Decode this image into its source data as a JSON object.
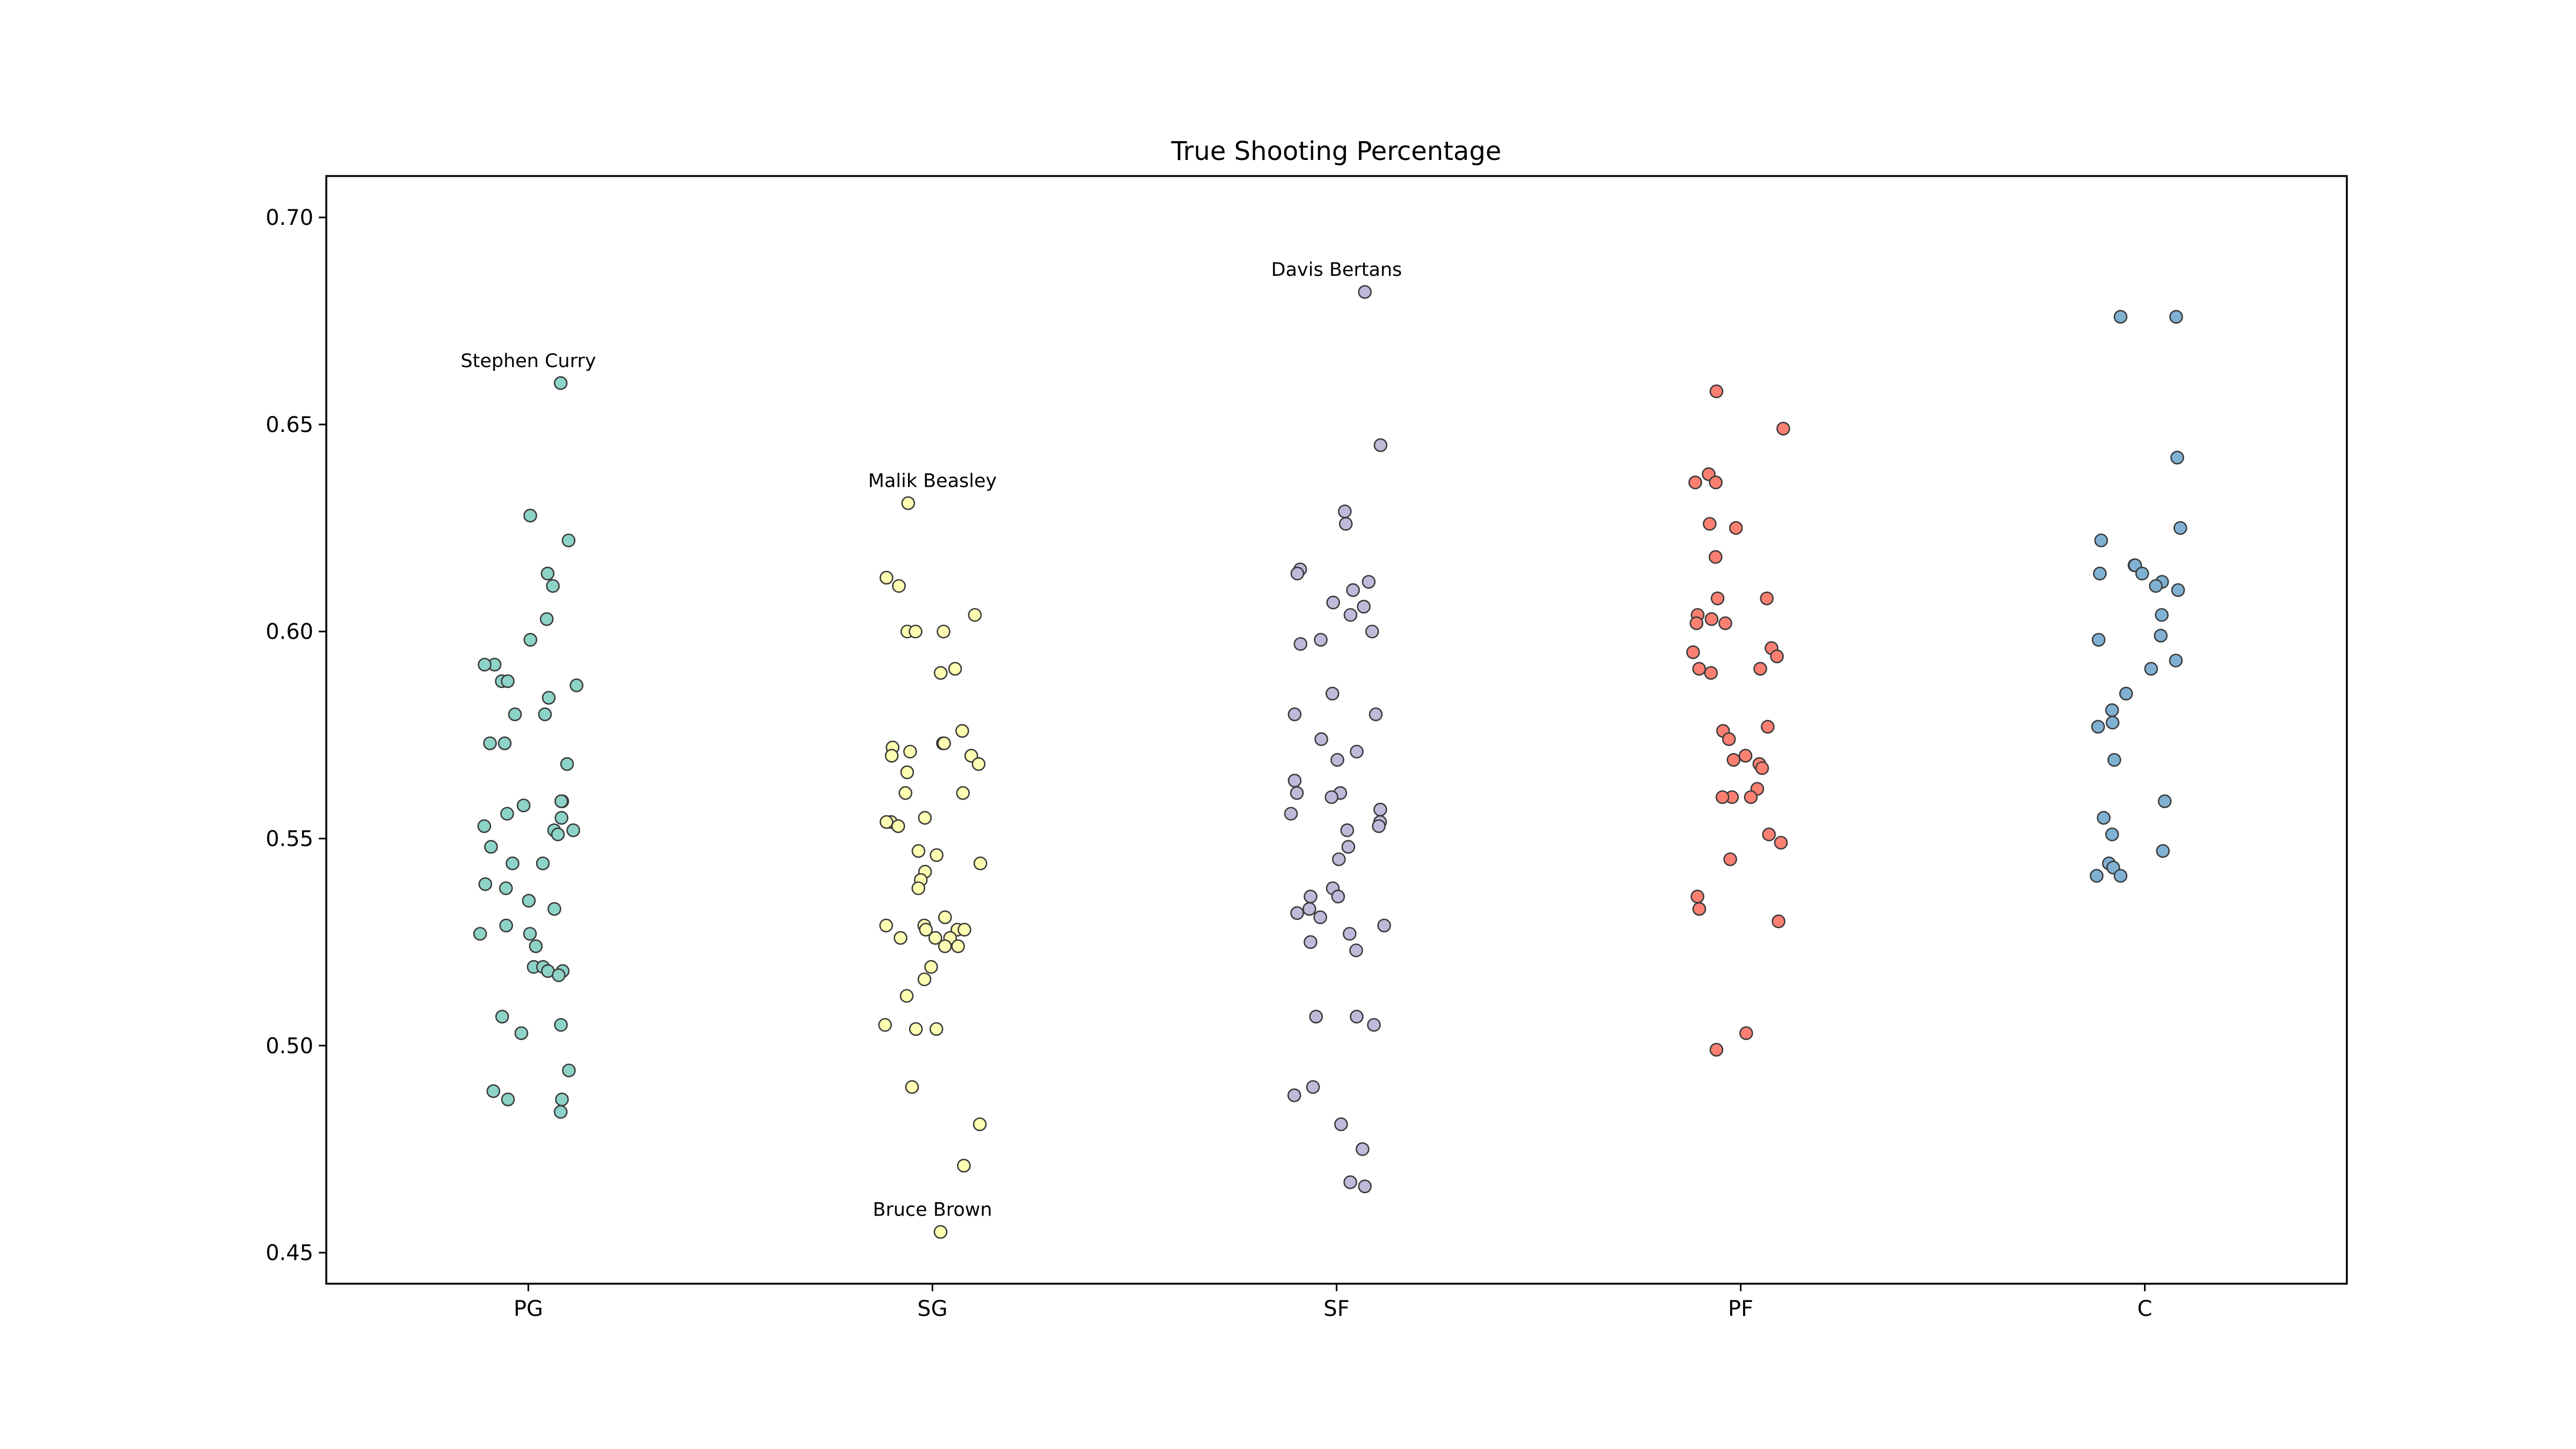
{
  "chart_data": {
    "type": "scatter",
    "subtype": "strip",
    "title": "True Shooting Percentage",
    "xlabel": "",
    "ylabel": "",
    "categories": [
      "PG",
      "SG",
      "SF",
      "PF",
      "C"
    ],
    "ylim": [
      0.4425,
      0.71
    ],
    "yticks": [
      0.45,
      0.5,
      0.55,
      0.6,
      0.65,
      0.7
    ],
    "ytick_labels": [
      "0.45",
      "0.50",
      "0.55",
      "0.60",
      "0.65",
      "0.70"
    ],
    "grid": false,
    "legend": "none",
    "series": [
      {
        "category": "PG",
        "color": "#8dd3c7",
        "values": [
          0.66,
          0.628,
          0.622,
          0.614,
          0.611,
          0.603,
          0.598,
          0.592,
          0.592,
          0.588,
          0.588,
          0.587,
          0.584,
          0.58,
          0.58,
          0.573,
          0.573,
          0.568,
          0.559,
          0.559,
          0.558,
          0.556,
          0.555,
          0.553,
          0.552,
          0.552,
          0.551,
          0.548,
          0.544,
          0.544,
          0.539,
          0.538,
          0.535,
          0.533,
          0.529,
          0.527,
          0.527,
          0.524,
          0.519,
          0.519,
          0.518,
          0.518,
          0.517,
          0.507,
          0.505,
          0.503,
          0.494,
          0.489,
          0.487,
          0.487,
          0.484
        ]
      },
      {
        "category": "SG",
        "color": "#ffffb3",
        "values": [
          0.631,
          0.613,
          0.611,
          0.604,
          0.6,
          0.6,
          0.6,
          0.591,
          0.59,
          0.576,
          0.573,
          0.573,
          0.572,
          0.571,
          0.57,
          0.57,
          0.568,
          0.566,
          0.561,
          0.561,
          0.555,
          0.554,
          0.554,
          0.553,
          0.547,
          0.546,
          0.544,
          0.542,
          0.54,
          0.538,
          0.531,
          0.529,
          0.529,
          0.528,
          0.528,
          0.528,
          0.526,
          0.526,
          0.526,
          0.524,
          0.524,
          0.519,
          0.516,
          0.512,
          0.505,
          0.504,
          0.504,
          0.49,
          0.481,
          0.471,
          0.455
        ]
      },
      {
        "category": "SF",
        "color": "#bebada",
        "values": [
          0.682,
          0.645,
          0.629,
          0.626,
          0.615,
          0.614,
          0.612,
          0.61,
          0.607,
          0.606,
          0.604,
          0.6,
          0.598,
          0.597,
          0.585,
          0.58,
          0.58,
          0.574,
          0.571,
          0.569,
          0.564,
          0.561,
          0.561,
          0.56,
          0.557,
          0.556,
          0.554,
          0.553,
          0.552,
          0.548,
          0.545,
          0.538,
          0.536,
          0.536,
          0.533,
          0.532,
          0.531,
          0.529,
          0.527,
          0.525,
          0.523,
          0.507,
          0.507,
          0.505,
          0.49,
          0.488,
          0.481,
          0.475,
          0.467,
          0.466
        ]
      },
      {
        "category": "PF",
        "color": "#fb8072",
        "values": [
          0.658,
          0.649,
          0.638,
          0.636,
          0.636,
          0.626,
          0.625,
          0.618,
          0.608,
          0.608,
          0.604,
          0.603,
          0.602,
          0.602,
          0.596,
          0.595,
          0.594,
          0.591,
          0.591,
          0.59,
          0.577,
          0.576,
          0.574,
          0.57,
          0.569,
          0.568,
          0.567,
          0.562,
          0.56,
          0.56,
          0.56,
          0.551,
          0.549,
          0.545,
          0.536,
          0.533,
          0.53,
          0.503,
          0.499
        ]
      },
      {
        "category": "C",
        "color": "#80b1d3",
        "values": [
          0.676,
          0.676,
          0.642,
          0.625,
          0.622,
          0.616,
          0.616,
          0.614,
          0.614,
          0.612,
          0.611,
          0.61,
          0.604,
          0.599,
          0.598,
          0.593,
          0.591,
          0.585,
          0.581,
          0.578,
          0.577,
          0.569,
          0.559,
          0.555,
          0.551,
          0.547,
          0.544,
          0.543,
          0.541,
          0.541
        ]
      }
    ],
    "annotations": [
      {
        "text": "Stephen Curry",
        "category": "PG",
        "y": 0.66
      },
      {
        "text": "Malik Beasley",
        "category": "SG",
        "y": 0.631
      },
      {
        "text": "Davis Bertans",
        "category": "SF",
        "y": 0.682
      },
      {
        "text": "Bruce Brown",
        "category": "SG",
        "y": 0.455
      }
    ]
  }
}
